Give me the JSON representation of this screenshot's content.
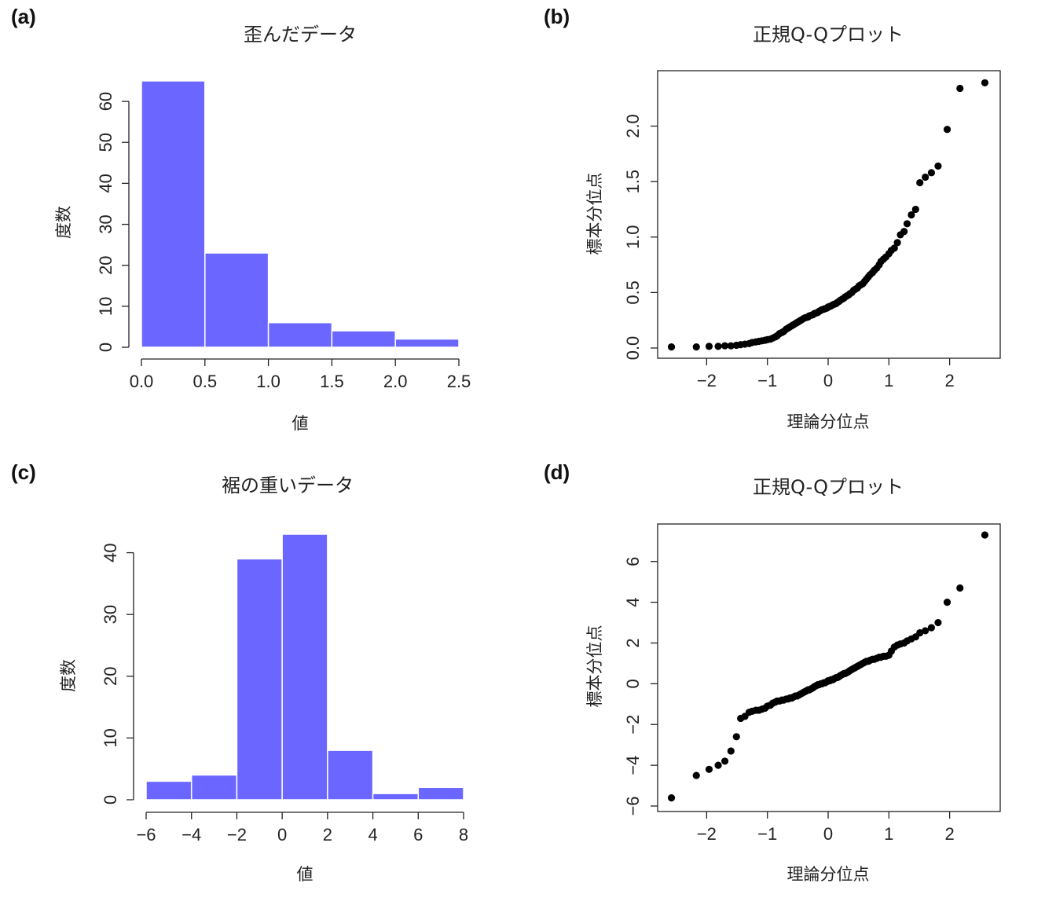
{
  "colors": {
    "bar": "#6b66ff",
    "bar_edge": "#ffffff",
    "point": "#000000"
  },
  "chart_data": [
    {
      "panel": "(a)",
      "type": "bar",
      "title": "歪んだデータ",
      "xlabel": "値",
      "ylabel": "度数",
      "bins": [
        [
          0.0,
          0.5
        ],
        [
          0.5,
          1.0
        ],
        [
          1.0,
          1.5
        ],
        [
          1.5,
          2.0
        ],
        [
          2.0,
          2.5
        ]
      ],
      "values": [
        65,
        23,
        6,
        4,
        2
      ],
      "xlim": [
        0,
        2.5
      ],
      "ylim": [
        0,
        65
      ],
      "xticks": [
        0.0,
        0.5,
        1.0,
        1.5,
        2.0,
        2.5
      ],
      "xtick_labels": [
        "0.0",
        "0.5",
        "1.0",
        "1.5",
        "2.0",
        "2.5"
      ],
      "yticks": [
        0,
        10,
        20,
        30,
        40,
        50,
        60
      ],
      "ytick_labels": [
        "0",
        "10",
        "20",
        "30",
        "40",
        "50",
        "60"
      ]
    },
    {
      "panel": "(b)",
      "type": "scatter",
      "title": "正規Q-Qプロット",
      "xlabel": "理論分位点",
      "ylabel": "標本分位点",
      "xlim": [
        -2.6,
        2.6
      ],
      "ylim": [
        0.0,
        2.4
      ],
      "xticks": [
        -2,
        -1,
        0,
        1,
        2
      ],
      "xtick_labels": [
        "−2",
        "−1",
        "0",
        "1",
        "2"
      ],
      "yticks": [
        0.0,
        0.5,
        1.0,
        1.5,
        2.0
      ],
      "ytick_labels": [
        "0.0",
        "0.5",
        "1.0",
        "1.5",
        "2.0"
      ],
      "points": [
        [
          -2.58,
          0.01
        ],
        [
          -2.17,
          0.01
        ],
        [
          -1.96,
          0.015
        ],
        [
          -1.81,
          0.015
        ],
        [
          -1.7,
          0.02
        ],
        [
          -1.6,
          0.02
        ],
        [
          -1.51,
          0.025
        ],
        [
          -1.44,
          0.03
        ],
        [
          -1.37,
          0.035
        ],
        [
          -1.3,
          0.04
        ],
        [
          -1.25,
          0.05
        ],
        [
          -1.19,
          0.055
        ],
        [
          -1.14,
          0.06
        ],
        [
          -1.09,
          0.065
        ],
        [
          -1.04,
          0.07
        ],
        [
          -1.0,
          0.075
        ],
        [
          -0.95,
          0.08
        ],
        [
          -0.91,
          0.09
        ],
        [
          -0.87,
          0.1
        ],
        [
          -0.84,
          0.11
        ],
        [
          -0.8,
          0.13
        ],
        [
          -0.76,
          0.14
        ],
        [
          -0.73,
          0.15
        ],
        [
          -0.69,
          0.17
        ],
        [
          -0.66,
          0.18
        ],
        [
          -0.63,
          0.19
        ],
        [
          -0.6,
          0.2
        ],
        [
          -0.57,
          0.21
        ],
        [
          -0.54,
          0.22
        ],
        [
          -0.51,
          0.23
        ],
        [
          -0.48,
          0.24
        ],
        [
          -0.45,
          0.25
        ],
        [
          -0.42,
          0.26
        ],
        [
          -0.39,
          0.27
        ],
        [
          -0.36,
          0.275
        ],
        [
          -0.33,
          0.28
        ],
        [
          -0.31,
          0.29
        ],
        [
          -0.28,
          0.295
        ],
        [
          -0.25,
          0.3
        ],
        [
          -0.23,
          0.31
        ],
        [
          -0.2,
          0.315
        ],
        [
          -0.17,
          0.32
        ],
        [
          -0.15,
          0.33
        ],
        [
          -0.12,
          0.34
        ],
        [
          -0.1,
          0.345
        ],
        [
          -0.07,
          0.35
        ],
        [
          -0.05,
          0.355
        ],
        [
          -0.02,
          0.36
        ],
        [
          0.0,
          0.37
        ],
        [
          0.03,
          0.375
        ],
        [
          0.05,
          0.38
        ],
        [
          0.08,
          0.39
        ],
        [
          0.1,
          0.395
        ],
        [
          0.13,
          0.4
        ],
        [
          0.15,
          0.41
        ],
        [
          0.18,
          0.42
        ],
        [
          0.2,
          0.43
        ],
        [
          0.23,
          0.44
        ],
        [
          0.26,
          0.45
        ],
        [
          0.28,
          0.46
        ],
        [
          0.31,
          0.47
        ],
        [
          0.34,
          0.48
        ],
        [
          0.36,
          0.49
        ],
        [
          0.39,
          0.5
        ],
        [
          0.42,
          0.52
        ],
        [
          0.45,
          0.53
        ],
        [
          0.48,
          0.54
        ],
        [
          0.51,
          0.56
        ],
        [
          0.54,
          0.57
        ],
        [
          0.57,
          0.58
        ],
        [
          0.6,
          0.6
        ],
        [
          0.63,
          0.62
        ],
        [
          0.66,
          0.64
        ],
        [
          0.69,
          0.66
        ],
        [
          0.73,
          0.68
        ],
        [
          0.76,
          0.7
        ],
        [
          0.8,
          0.72
        ],
        [
          0.84,
          0.75
        ],
        [
          0.87,
          0.78
        ],
        [
          0.91,
          0.8
        ],
        [
          0.95,
          0.82
        ],
        [
          1.0,
          0.85
        ],
        [
          1.04,
          0.88
        ],
        [
          1.09,
          0.9
        ],
        [
          1.14,
          0.95
        ],
        [
          1.19,
          1.02
        ],
        [
          1.25,
          1.05
        ],
        [
          1.3,
          1.12
        ],
        [
          1.37,
          1.2
        ],
        [
          1.44,
          1.25
        ],
        [
          1.51,
          1.49
        ],
        [
          1.6,
          1.54
        ],
        [
          1.7,
          1.58
        ],
        [
          1.81,
          1.64
        ],
        [
          1.96,
          1.97
        ],
        [
          2.17,
          2.34
        ],
        [
          2.58,
          2.39
        ]
      ]
    },
    {
      "panel": "(c)",
      "type": "bar",
      "title": "裾の重いデータ",
      "xlabel": "値",
      "ylabel": "度数",
      "bins": [
        [
          -6,
          -4
        ],
        [
          -4,
          -2
        ],
        [
          -2,
          0
        ],
        [
          0,
          2
        ],
        [
          2,
          4
        ],
        [
          4,
          6
        ],
        [
          6,
          8
        ]
      ],
      "values": [
        3,
        4,
        39,
        43,
        8,
        1,
        2
      ],
      "xlim": [
        -6,
        8
      ],
      "ylim": [
        0,
        43
      ],
      "xticks": [
        -6,
        -4,
        -2,
        0,
        2,
        4,
        6,
        8
      ],
      "xtick_labels": [
        "−6",
        "−4",
        "−2",
        "0",
        "2",
        "4",
        "6",
        "8"
      ],
      "yticks": [
        0,
        10,
        20,
        30,
        40
      ],
      "ytick_labels": [
        "0",
        "10",
        "20",
        "30",
        "40"
      ]
    },
    {
      "panel": "(d)",
      "type": "scatter",
      "title": "正規Q-Qプロット",
      "xlabel": "理論分位点",
      "ylabel": "標本分位点",
      "xlim": [
        -2.6,
        2.6
      ],
      "ylim": [
        -6.0,
        7.3
      ],
      "xticks": [
        -2,
        -1,
        0,
        1,
        2
      ],
      "xtick_labels": [
        "−2",
        "−1",
        "0",
        "1",
        "2"
      ],
      "yticks": [
        -6,
        -4,
        -2,
        0,
        2,
        4,
        6
      ],
      "ytick_labels": [
        "−6",
        "−4",
        "−2",
        "0",
        "2",
        "4",
        "6"
      ],
      "points": [
        [
          -2.58,
          -5.6
        ],
        [
          -2.17,
          -4.5
        ],
        [
          -1.96,
          -4.2
        ],
        [
          -1.81,
          -4.0
        ],
        [
          -1.7,
          -3.8
        ],
        [
          -1.6,
          -3.3
        ],
        [
          -1.51,
          -2.6
        ],
        [
          -1.44,
          -1.7
        ],
        [
          -1.37,
          -1.6
        ],
        [
          -1.3,
          -1.4
        ],
        [
          -1.25,
          -1.35
        ],
        [
          -1.19,
          -1.3
        ],
        [
          -1.14,
          -1.3
        ],
        [
          -1.09,
          -1.25
        ],
        [
          -1.04,
          -1.2
        ],
        [
          -1.0,
          -1.1
        ],
        [
          -0.95,
          -1.05
        ],
        [
          -0.91,
          -0.95
        ],
        [
          -0.87,
          -0.9
        ],
        [
          -0.84,
          -0.85
        ],
        [
          -0.8,
          -0.85
        ],
        [
          -0.76,
          -0.8
        ],
        [
          -0.73,
          -0.8
        ],
        [
          -0.69,
          -0.75
        ],
        [
          -0.66,
          -0.75
        ],
        [
          -0.63,
          -0.7
        ],
        [
          -0.6,
          -0.7
        ],
        [
          -0.57,
          -0.65
        ],
        [
          -0.54,
          -0.6
        ],
        [
          -0.51,
          -0.6
        ],
        [
          -0.48,
          -0.55
        ],
        [
          -0.45,
          -0.5
        ],
        [
          -0.42,
          -0.45
        ],
        [
          -0.39,
          -0.4
        ],
        [
          -0.36,
          -0.35
        ],
        [
          -0.33,
          -0.3
        ],
        [
          -0.31,
          -0.3
        ],
        [
          -0.28,
          -0.25
        ],
        [
          -0.25,
          -0.2
        ],
        [
          -0.23,
          -0.15
        ],
        [
          -0.2,
          -0.1
        ],
        [
          -0.17,
          -0.05
        ],
        [
          -0.15,
          -0.05
        ],
        [
          -0.12,
          0.0
        ],
        [
          -0.1,
          0.0
        ],
        [
          -0.07,
          0.05
        ],
        [
          -0.05,
          0.05
        ],
        [
          -0.02,
          0.1
        ],
        [
          0.0,
          0.15
        ],
        [
          0.03,
          0.15
        ],
        [
          0.05,
          0.2
        ],
        [
          0.08,
          0.2
        ],
        [
          0.1,
          0.25
        ],
        [
          0.13,
          0.3
        ],
        [
          0.15,
          0.3
        ],
        [
          0.18,
          0.35
        ],
        [
          0.2,
          0.4
        ],
        [
          0.23,
          0.45
        ],
        [
          0.26,
          0.5
        ],
        [
          0.28,
          0.5
        ],
        [
          0.31,
          0.55
        ],
        [
          0.34,
          0.6
        ],
        [
          0.36,
          0.65
        ],
        [
          0.39,
          0.7
        ],
        [
          0.42,
          0.75
        ],
        [
          0.45,
          0.8
        ],
        [
          0.48,
          0.85
        ],
        [
          0.51,
          0.9
        ],
        [
          0.54,
          0.95
        ],
        [
          0.57,
          1.0
        ],
        [
          0.6,
          1.05
        ],
        [
          0.63,
          1.1
        ],
        [
          0.66,
          1.1
        ],
        [
          0.69,
          1.15
        ],
        [
          0.73,
          1.2
        ],
        [
          0.76,
          1.2
        ],
        [
          0.8,
          1.25
        ],
        [
          0.84,
          1.3
        ],
        [
          0.87,
          1.3
        ],
        [
          0.91,
          1.35
        ],
        [
          0.95,
          1.35
        ],
        [
          1.0,
          1.4
        ],
        [
          1.04,
          1.6
        ],
        [
          1.09,
          1.8
        ],
        [
          1.14,
          1.9
        ],
        [
          1.19,
          1.95
        ],
        [
          1.25,
          2.0
        ],
        [
          1.3,
          2.1
        ],
        [
          1.37,
          2.2
        ],
        [
          1.44,
          2.3
        ],
        [
          1.51,
          2.5
        ],
        [
          1.6,
          2.6
        ],
        [
          1.7,
          2.75
        ],
        [
          1.81,
          3.0
        ],
        [
          1.96,
          4.0
        ],
        [
          2.17,
          4.7
        ],
        [
          2.58,
          7.3
        ]
      ]
    }
  ]
}
